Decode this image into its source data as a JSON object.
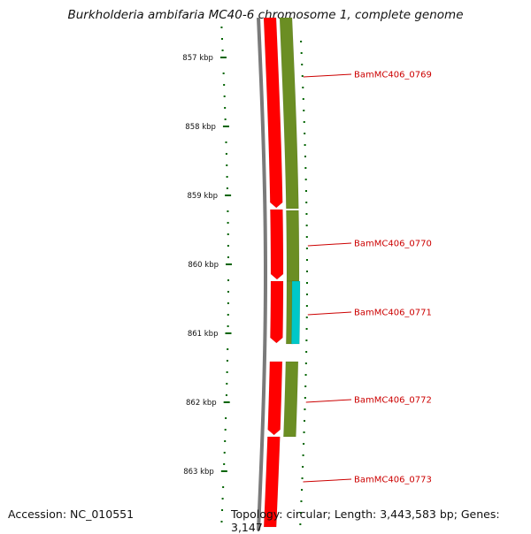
{
  "title": "Burkholderia ambifaria MC40-6 chromosome 1, complete genome",
  "footer": {
    "accession": "Accession: NC_010551",
    "topology": "Topology: circular; Length: 3,443,583 bp; Genes: 3,147"
  },
  "scale": {
    "unit": "kbp",
    "ticks": [
      "857 kbp",
      "858 kbp",
      "859 kbp",
      "860 kbp",
      "861 kbp",
      "862 kbp",
      "863 kbp"
    ]
  },
  "genes": [
    {
      "locus": "BamMC406_0769"
    },
    {
      "locus": "BamMC406_0770"
    },
    {
      "locus": "BamMC406_0771"
    },
    {
      "locus": "BamMC406_0772"
    },
    {
      "locus": "BamMC406_0773"
    }
  ],
  "colors": {
    "backbone": "#7a7a7a",
    "cds": "#ff0000",
    "gene_bar": "#6b8e23",
    "cds_alt": "#00c8c8",
    "ticks": "#006400",
    "labels": "#cc0000"
  }
}
